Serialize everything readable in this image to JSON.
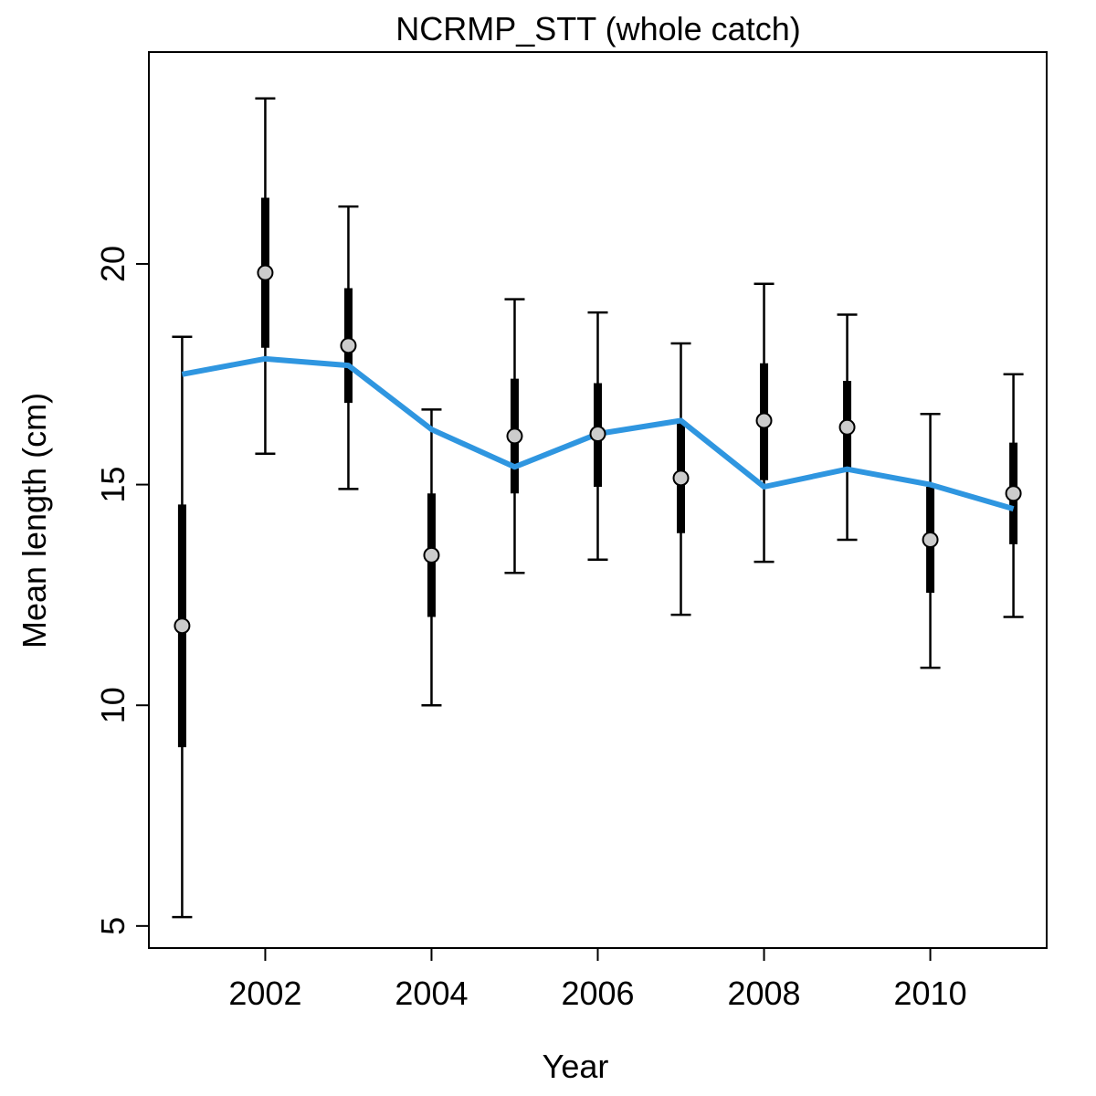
{
  "chart_data": {
    "type": "line",
    "title": "NCRMP_STT (whole catch)",
    "xlabel": "Year",
    "ylabel": "Mean length (cm)",
    "xlim": [
      2000.6,
      2011.4
    ],
    "ylim": [
      4.5,
      24.8
    ],
    "x_ticks": [
      2002,
      2004,
      2006,
      2008,
      2010
    ],
    "y_ticks": [
      5,
      10,
      15,
      20
    ],
    "grid": false,
    "legend": "none",
    "colors": {
      "fit_line": "#2f96e0",
      "observed_point_fill": "#cccccc",
      "observed_point_stroke": "#000000",
      "error_bars": "#000000"
    },
    "observed": {
      "x": [
        2001,
        2002,
        2003,
        2004,
        2005,
        2006,
        2007,
        2008,
        2009,
        2010,
        2011
      ],
      "mean": [
        11.8,
        19.8,
        18.15,
        13.4,
        16.1,
        16.15,
        15.15,
        16.45,
        16.3,
        13.75,
        14.8
      ],
      "inner_lo": [
        9.05,
        18.1,
        16.85,
        12.0,
        14.8,
        14.95,
        13.9,
        15.1,
        15.3,
        12.55,
        13.65
      ],
      "inner_hi": [
        14.55,
        21.5,
        19.45,
        14.8,
        17.4,
        17.3,
        16.4,
        17.75,
        17.35,
        14.95,
        15.95
      ],
      "outer_lo": [
        5.2,
        15.7,
        14.9,
        10.0,
        13.0,
        13.3,
        12.05,
        13.25,
        13.75,
        10.85,
        12.0
      ],
      "outer_hi": [
        18.35,
        23.75,
        21.3,
        16.7,
        19.2,
        18.9,
        18.2,
        19.55,
        18.85,
        16.6,
        17.5
      ]
    },
    "fit": {
      "x": [
        2001,
        2002,
        2003,
        2004,
        2005,
        2006,
        2007,
        2008,
        2009,
        2010,
        2011
      ],
      "y": [
        17.5,
        17.85,
        17.7,
        16.25,
        15.4,
        16.15,
        16.45,
        14.95,
        15.35,
        15.0,
        14.45
      ]
    }
  }
}
